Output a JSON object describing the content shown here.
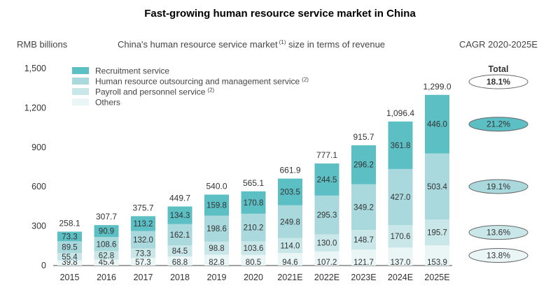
{
  "page": {
    "title": "Fast-growing human resource service market in China",
    "unit_label": "RMB billions",
    "subtitle": "China's human resource service market",
    "subtitle_sup": "(1)",
    "subtitle_suffix": " size in terms of revenue",
    "cagr_header": "CAGR 2020-2025E"
  },
  "chart_data": {
    "type": "bar",
    "stacked": true,
    "title": "Fast-growing human resource service market in China",
    "subtitle": "China's human resource service market (1) size in terms of revenue",
    "ylabel": "RMB billions",
    "ylim": [
      0,
      1500
    ],
    "yticks": [
      0,
      300,
      600,
      900,
      1200,
      1500
    ],
    "ytick_labels": [
      "0",
      "300",
      "600",
      "900",
      "1,200",
      "1,500"
    ],
    "grid": false,
    "legend_position": "top-left",
    "categories": [
      "2015",
      "2016",
      "2017",
      "2018",
      "2019",
      "2020",
      "2021E",
      "2022E",
      "2023E",
      "2024E",
      "2025E"
    ],
    "series": [
      {
        "name": "Others",
        "color": "#eaf5f6",
        "values": [
          39.8,
          45.4,
          57.3,
          68.8,
          82.8,
          80.5,
          94.6,
          107.2,
          121.7,
          137.0,
          153.9
        ]
      },
      {
        "name": "Payroll and personnel service",
        "name_sup": "(2)",
        "color": "#c9e7e9",
        "values": [
          55.4,
          62.8,
          73.3,
          84.5,
          98.8,
          103.6,
          114.0,
          130.0,
          148.7,
          170.6,
          195.7
        ]
      },
      {
        "name": "Human resource outsourcing and management service",
        "name_sup": "(2)",
        "color": "#a9d9dd",
        "values": [
          89.5,
          108.6,
          132.0,
          162.1,
          198.6,
          210.2,
          249.8,
          295.3,
          349.2,
          427.0,
          503.4
        ]
      },
      {
        "name": "Recruitment service",
        "color": "#5cbfc4",
        "values": [
          73.3,
          90.9,
          113.2,
          134.3,
          159.8,
          170.8,
          203.5,
          244.5,
          296.2,
          361.8,
          446.0
        ]
      }
    ],
    "value_labels": [
      [
        "39.8",
        "45.4",
        "57.3",
        "68.8",
        "82.8",
        "80.5",
        "94.6",
        "107.2",
        "121.7",
        "137.0",
        "153.9"
      ],
      [
        "55.4",
        "62.8",
        "73.3",
        "84.5",
        "98.8",
        "103.6",
        "114.0",
        "130.0",
        "148.7",
        "170.6",
        "195.7"
      ],
      [
        "89.5",
        "108.6",
        "132.0",
        "162.1",
        "198.6",
        "210.2",
        "249.8",
        "295.3",
        "349.2",
        "427.0",
        "503.4"
      ],
      [
        "73.3",
        "90.9",
        "113.2",
        "134.3",
        "159.8",
        "170.8",
        "203.5",
        "244.5",
        "296.2",
        "361.8",
        "446.0"
      ]
    ],
    "totals": [
      258.1,
      307.7,
      375.7,
      449.7,
      540.0,
      565.1,
      661.9,
      777.1,
      915.7,
      1096.4,
      1299.0
    ],
    "total_labels": [
      "258.1",
      "307.7",
      "375.7",
      "449.7",
      "540.0",
      "565.1",
      "661.9",
      "777.1",
      "915.7",
      "1,096.4",
      "1,299.0"
    ],
    "legend_order": [
      3,
      2,
      1,
      0
    ],
    "cagr": {
      "header": "CAGR 2020-2025E",
      "total_label": "Total",
      "total": "18.1%",
      "by_series": [
        {
          "series": "Recruitment service",
          "value": "21.2%",
          "fill": "#5cbfc4"
        },
        {
          "series": "Human resource outsourcing and management service",
          "value": "19.1%",
          "fill": "#a9d9dd"
        },
        {
          "series": "Payroll and personnel service",
          "value": "13.6%",
          "fill": "#c9e7e9"
        },
        {
          "series": "Others",
          "value": "13.8%",
          "fill": "#eaf5f6"
        }
      ]
    }
  }
}
